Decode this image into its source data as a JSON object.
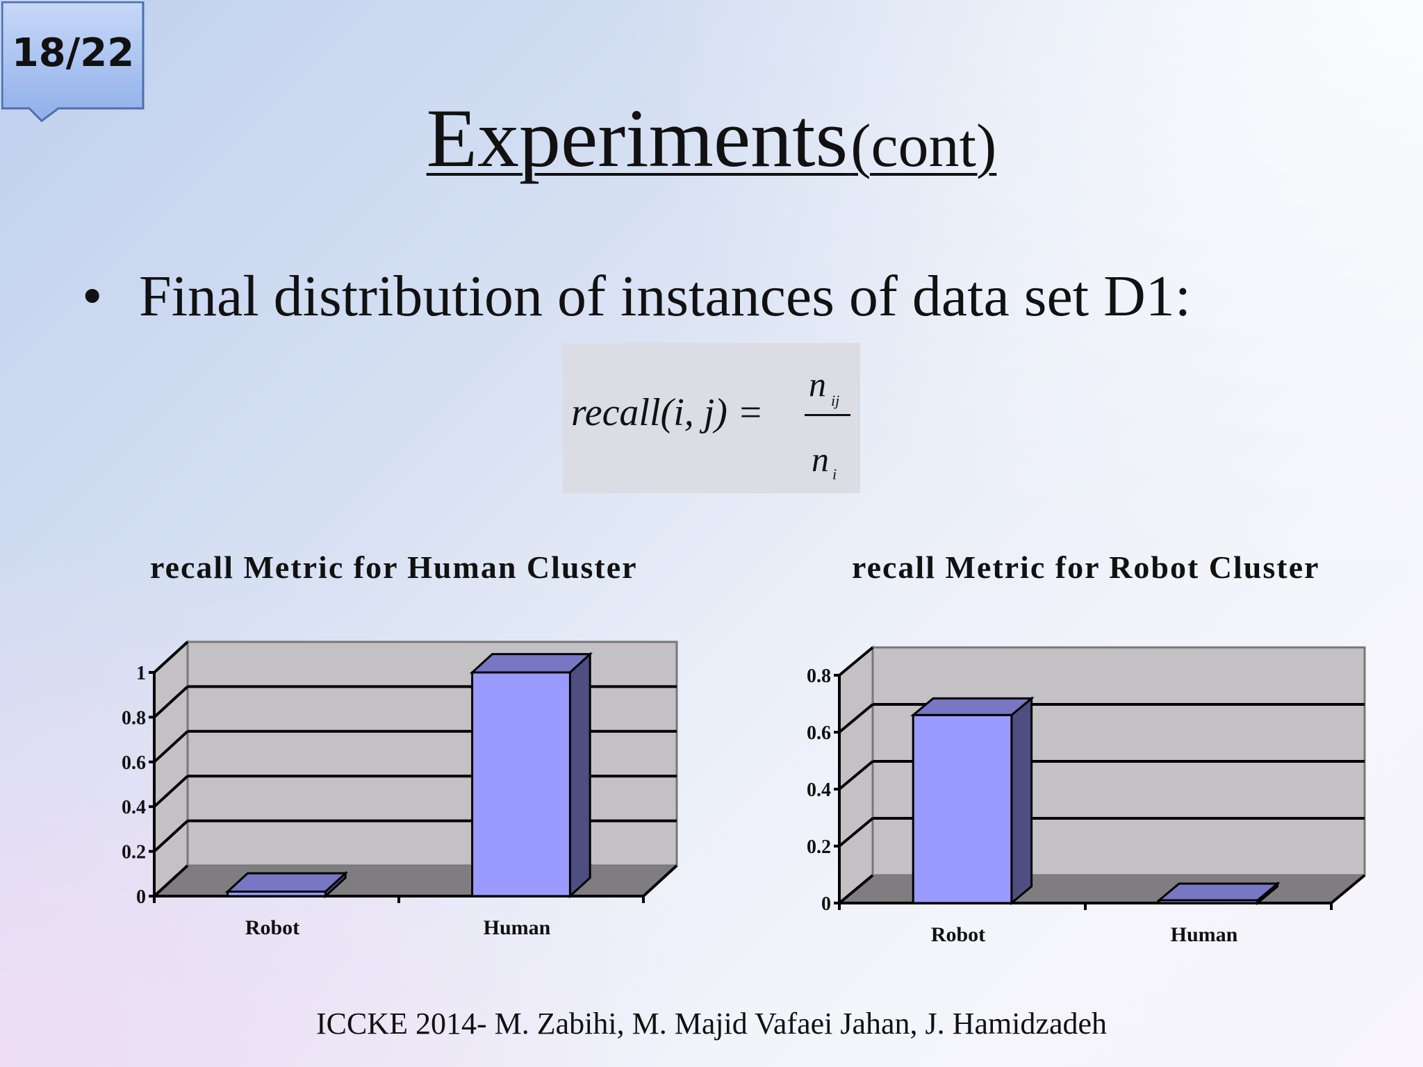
{
  "slide": {
    "page_number": "18/22",
    "title_main": "Experiments",
    "title_sub": "(cont)",
    "bullet": "Final distribution of instances of data set D1:",
    "formula": {
      "lhs": "recall(i, j) =",
      "numerator": "n",
      "numerator_sub": "ij",
      "denominator": "n",
      "denominator_sub": "i"
    },
    "footer": "ICCKE 2014- M. Zabihi, M. Majid Vafaei Jahan, J. Hamidzadeh"
  },
  "colors": {
    "bar_front": "#9b9bff",
    "bar_top": "#7777c4",
    "bar_side": "#4e4e80",
    "plot_wall": "#c3c1c4",
    "plot_floor": "#7f7d80"
  },
  "chart_data": [
    {
      "type": "bar",
      "title": "recall Metric for Human Cluster",
      "categories": [
        "Robot",
        "Human"
      ],
      "values": [
        0.02,
        1.0
      ],
      "ylim": [
        0,
        1
      ],
      "yticks": [
        "0",
        "0.2",
        "0.4",
        "0.6",
        "0.8",
        "1"
      ],
      "grid": true,
      "legend": "none"
    },
    {
      "type": "bar",
      "title": "recall Metric for Robot Cluster",
      "categories": [
        "Robot",
        "Human"
      ],
      "values": [
        0.66,
        0.0
      ],
      "ylim": [
        0,
        0.8
      ],
      "yticks": [
        "0",
        "0.2",
        "0.4",
        "0.6",
        "0.8"
      ],
      "grid": true,
      "legend": "none"
    }
  ]
}
